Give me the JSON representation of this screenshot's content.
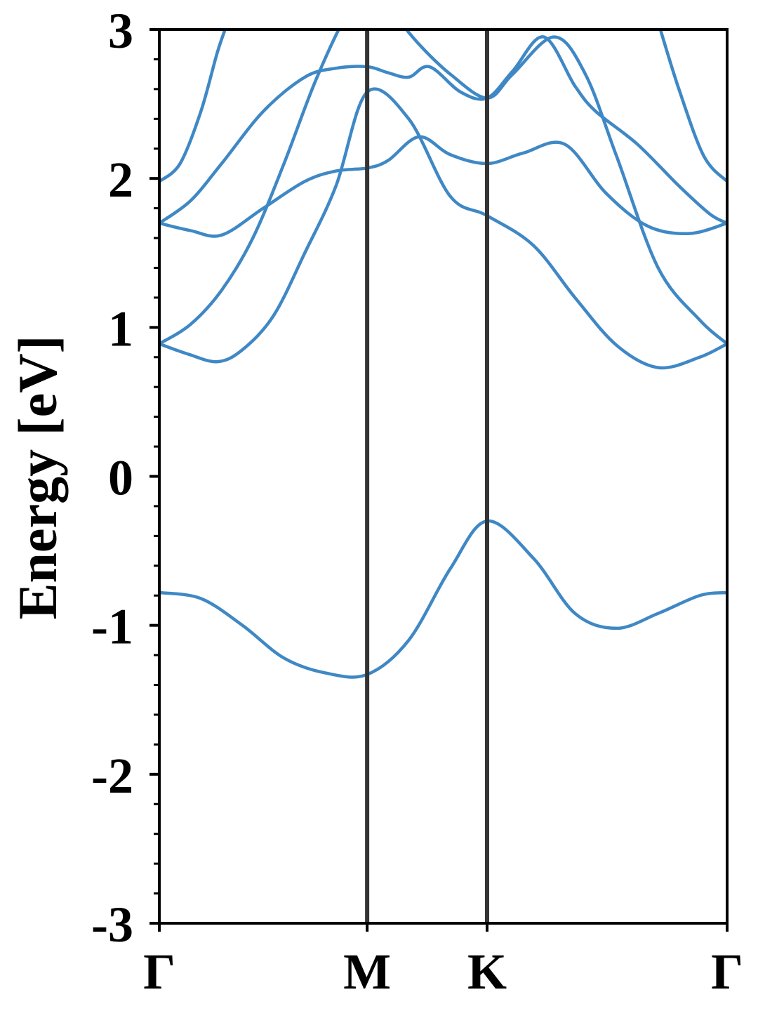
{
  "chart_data": {
    "type": "line",
    "title": "",
    "xlabel": "",
    "ylabel": "Energy [eV]",
    "ylim": [
      -3,
      3
    ],
    "xlim": [
      0,
      2.732
    ],
    "grid": false,
    "legend": "none",
    "line_color": "#3f88c5",
    "marker_line_color": "#333333",
    "y_ticks": [
      -3,
      -2,
      -1,
      0,
      1,
      2,
      3
    ],
    "y_tick_labels": [
      "-3",
      "-2",
      "-1",
      "0",
      "1",
      "2",
      "3"
    ],
    "x_ticks": [
      0,
      1,
      1.577,
      2.732
    ],
    "x_tick_labels": [
      "Γ",
      "M",
      "K",
      "Γ"
    ],
    "high_symmetry_lines": [
      1,
      1.577
    ],
    "series": [
      {
        "x": [
          0,
          0.2,
          0.4,
          0.6,
          0.8,
          1.0,
          1.2,
          1.4,
          1.577,
          1.8,
          2.0,
          2.2,
          2.4,
          2.6,
          2.732
        ],
        "y": [
          -0.78,
          -0.82,
          -1.0,
          -1.22,
          -1.32,
          -1.33,
          -1.1,
          -0.62,
          -0.3,
          -0.55,
          -0.92,
          -1.02,
          -0.92,
          -0.8,
          -0.78
        ]
      },
      {
        "x": [
          0,
          0.14,
          0.28,
          0.4,
          0.55,
          0.7,
          0.85,
          1.0,
          1.2,
          1.4,
          1.577,
          1.8,
          2.0,
          2.2,
          2.4,
          2.6,
          2.732
        ],
        "y": [
          0.89,
          0.82,
          0.77,
          0.85,
          1.08,
          1.5,
          1.95,
          2.58,
          2.4,
          1.88,
          1.75,
          1.55,
          1.2,
          0.88,
          0.73,
          0.8,
          0.89
        ]
      },
      {
        "x": [
          0,
          0.15,
          0.3,
          0.45,
          0.6,
          0.75,
          0.9,
          1.0,
          1.1,
          1.25,
          1.4,
          1.577,
          1.7,
          1.9,
          2.05,
          2.2,
          2.4,
          2.6,
          2.732
        ],
        "y": [
          0.89,
          1.02,
          1.25,
          1.6,
          2.1,
          2.65,
          3.1,
          3.3,
          3.15,
          2.9,
          2.7,
          2.54,
          2.7,
          2.95,
          2.7,
          2.15,
          1.4,
          1.05,
          0.89
        ]
      },
      {
        "x": [
          0,
          0.15,
          0.3,
          0.5,
          0.7,
          0.85,
          1.0,
          1.1,
          1.25,
          1.4,
          1.577,
          1.75,
          1.95,
          2.15,
          2.35,
          2.55,
          2.732
        ],
        "y": [
          1.7,
          1.65,
          1.62,
          1.8,
          1.98,
          2.05,
          2.07,
          2.12,
          2.28,
          2.16,
          2.1,
          2.17,
          2.23,
          1.9,
          1.68,
          1.63,
          1.7
        ]
      },
      {
        "x": [
          0,
          0.15,
          0.3,
          0.5,
          0.7,
          0.85,
          1.0,
          1.1,
          1.2,
          1.3,
          1.45,
          1.577,
          1.7,
          1.85,
          2.0,
          2.1,
          2.3,
          2.5,
          2.65,
          2.732
        ],
        "y": [
          1.7,
          1.85,
          2.1,
          2.45,
          2.68,
          2.74,
          2.75,
          2.71,
          2.68,
          2.75,
          2.58,
          2.54,
          2.72,
          2.95,
          2.62,
          2.45,
          2.23,
          1.95,
          1.76,
          1.7
        ]
      },
      {
        "x": [
          0,
          0.1,
          0.2,
          0.28,
          0.33
        ],
        "y": [
          1.98,
          2.1,
          2.45,
          2.85,
          3.05
        ]
      },
      {
        "x": [
          2.4,
          2.5,
          2.62,
          2.732
        ],
        "y": [
          3.05,
          2.6,
          2.15,
          1.98
        ]
      }
    ]
  }
}
